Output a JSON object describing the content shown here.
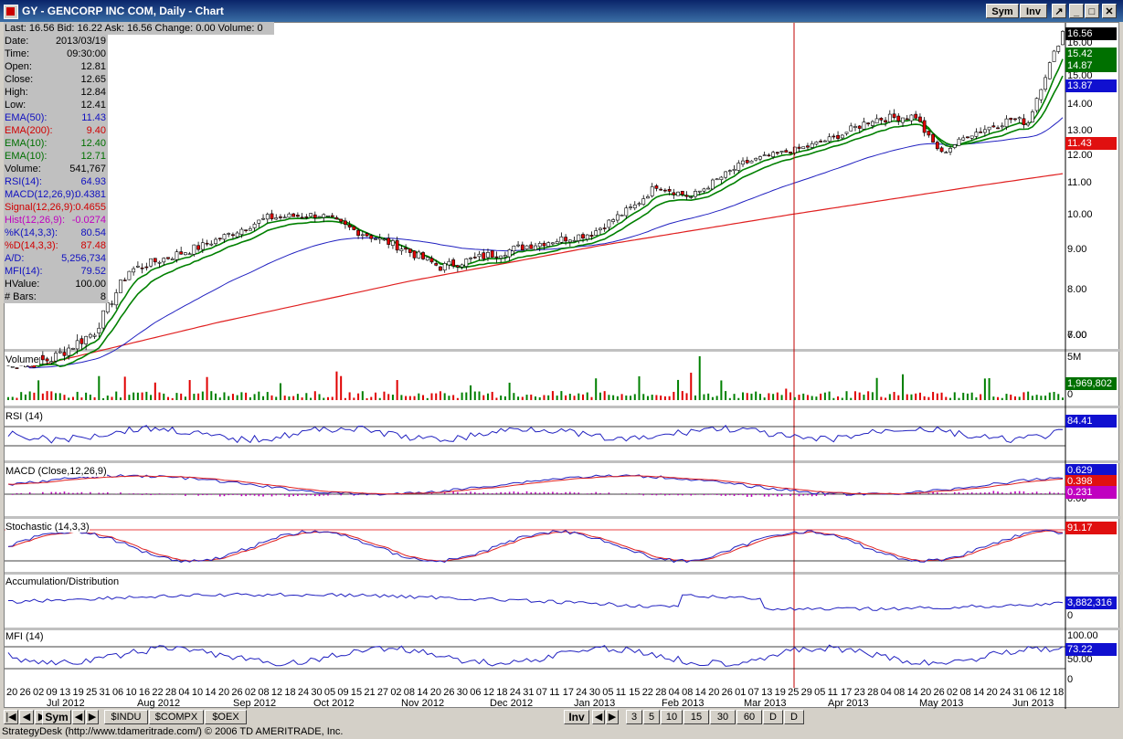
{
  "window": {
    "title": "GY - GENCORP INC COM, Daily - Chart",
    "sym_button": "Sym",
    "inv_button": "Inv"
  },
  "info_bar": {
    "last": "Last: 16.56",
    "bid": "Bid: 16.22",
    "ask": "Ask: 16.56",
    "change": "Change: 0.00",
    "volume": "Volume: 0"
  },
  "data_panel": [
    {
      "label": "Date:",
      "value": "2013/03/19",
      "color": "#000000"
    },
    {
      "label": "Time:",
      "value": "09:30:00",
      "color": "#000000"
    },
    {
      "label": "Open:",
      "value": "12.81",
      "color": "#000000"
    },
    {
      "label": "Close:",
      "value": "12.65",
      "color": "#000000"
    },
    {
      "label": "High:",
      "value": "12.84",
      "color": "#000000"
    },
    {
      "label": "Low:",
      "value": "12.41",
      "color": "#000000"
    },
    {
      "label": "EMA(50):",
      "value": "11.43",
      "color": "#1010c0"
    },
    {
      "label": "EMA(200):",
      "value": "9.40",
      "color": "#d00000"
    },
    {
      "label": "EMA(10):",
      "value": "12.40",
      "color": "#007000"
    },
    {
      "label": "EMA(10):",
      "value": "12.71",
      "color": "#007000"
    },
    {
      "label": "Volume:",
      "value": "541,767",
      "color": "#000000"
    },
    {
      "label": "RSI(14):",
      "value": "64.93",
      "color": "#1010c0"
    },
    {
      "label": "MACD(12,26,9):",
      "value": "0.4381",
      "color": "#1010c0"
    },
    {
      "label": "Signal(12,26,9):",
      "value": "0.4655",
      "color": "#d00000"
    },
    {
      "label": "Hist(12,26,9):",
      "value": "-0.0274",
      "color": "#c000c0"
    },
    {
      "label": "%K(14,3,3):",
      "value": "80.54",
      "color": "#1010c0"
    },
    {
      "label": "%D(14,3,3):",
      "value": "87.48",
      "color": "#d00000"
    },
    {
      "label": "A/D:",
      "value": "5,256,734",
      "color": "#1010c0"
    },
    {
      "label": "MFI(14):",
      "value": "79.52",
      "color": "#1010c0"
    },
    {
      "label": "HValue:",
      "value": "100.00",
      "color": "#000000"
    },
    {
      "label": "# Bars:",
      "value": "8",
      "color": "#000000"
    }
  ],
  "panels": {
    "price": {
      "axis_labels": [
        "16.00",
        "15.00",
        "14.00",
        "13.00",
        "12.00",
        "11.00",
        "10.00",
        "9.00",
        "8.00",
        "7.00",
        "6.00"
      ],
      "badges": [
        {
          "text": "16.56",
          "color": "#000000"
        },
        {
          "text": "15.42",
          "color": "#007000"
        },
        {
          "text": "14.87",
          "color": "#007000"
        },
        {
          "text": "13.87",
          "color": "#1010d0"
        },
        {
          "text": "11.43",
          "color": "#e01010"
        }
      ]
    },
    "volume": {
      "title": "Volume",
      "axis_labels": [
        "5M",
        "0"
      ],
      "badge": {
        "text": "1,969,802",
        "color": "#007000"
      }
    },
    "rsi": {
      "title": "RSI (14)",
      "badge": {
        "text": "84.41",
        "color": "#1010d0"
      }
    },
    "macd": {
      "title": "MACD (Close,12,26,9)",
      "axis_labels": [
        "0.00"
      ],
      "badges": [
        {
          "text": "0.629",
          "color": "#1010d0"
        },
        {
          "text": "0.398",
          "color": "#e01010"
        },
        {
          "text": "0.231",
          "color": "#c000c0"
        }
      ]
    },
    "stochastic": {
      "title": "Stochastic (14,3,3)",
      "badge": {
        "text": "91.17",
        "color": "#e01010"
      }
    },
    "ad": {
      "title": "Accumulation/Distribution",
      "axis_labels": [
        "0"
      ],
      "badge": {
        "text": "3,882,316",
        "color": "#1010d0"
      }
    },
    "mfi": {
      "title": "MFI (14)",
      "axis_labels": [
        "100.00",
        "50.00",
        "0"
      ],
      "badge": {
        "text": "73.22",
        "color": "#1010d0"
      }
    }
  },
  "x_axis": {
    "days": [
      "20",
      "26",
      "02",
      "09",
      "13",
      "19",
      "25",
      "31",
      "06",
      "10",
      "16",
      "22",
      "28",
      "04",
      "10",
      "14",
      "20",
      "26",
      "02",
      "08",
      "12",
      "18",
      "24",
      "30",
      "05",
      "09",
      "15",
      "21",
      "27",
      "02",
      "08",
      "14",
      "20",
      "26",
      "30",
      "06",
      "12",
      "18",
      "24",
      "31",
      "07",
      "11",
      "17",
      "24",
      "30",
      "05",
      "11",
      "15",
      "22",
      "28",
      "04",
      "08",
      "14",
      "20",
      "26",
      "01",
      "07",
      "13",
      "19",
      "25",
      "29",
      "05",
      "11",
      "17",
      "23",
      "28",
      "04",
      "08",
      "14",
      "20",
      "26",
      "02",
      "08",
      "14",
      "20",
      "24",
      "31",
      "06",
      "12",
      "18"
    ],
    "months": [
      "Jul 2012",
      "Aug 2012",
      "Sep 2012",
      "Oct 2012",
      "Nov 2012",
      "Dec 2012",
      "Jan 2013",
      "Feb 2013",
      "Mar 2013",
      "Apr 2013",
      "May 2013",
      "Jun 2013"
    ]
  },
  "bottom_bar": {
    "sym_button": "Sym",
    "symbol_tabs": [
      "$INDU",
      "$COMPX",
      "$OEX"
    ],
    "inv_button": "Inv",
    "interval_tabs": [
      "3",
      "5",
      "10",
      "15",
      "30",
      "60",
      "D",
      "D"
    ]
  },
  "status_bar": "StrategyDesk (http://www.tdameritrade.com/) © 2006 TD AMERITRADE, Inc."
}
